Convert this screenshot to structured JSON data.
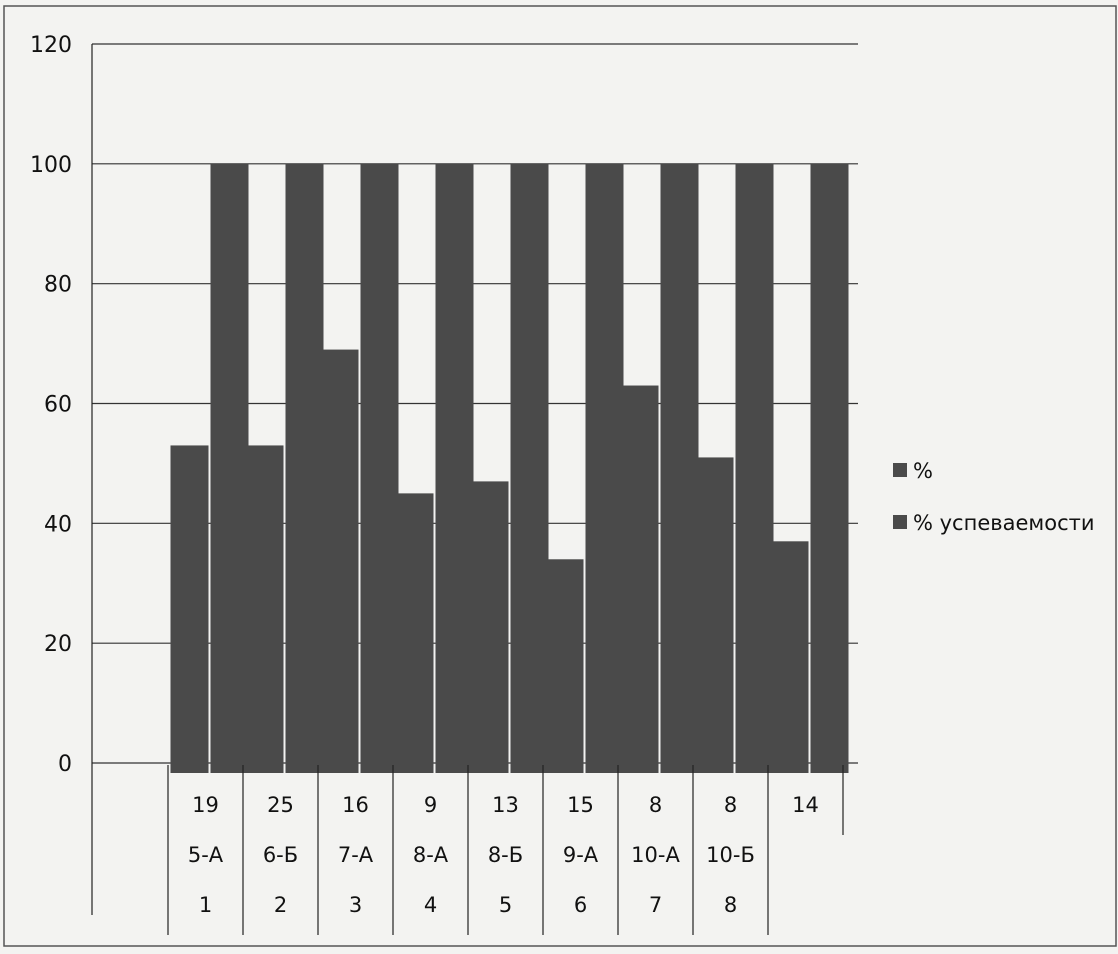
{
  "chart_data": {
    "type": "bar",
    "ylim": [
      0,
      120
    ],
    "yticks": [
      0,
      20,
      40,
      60,
      80,
      100,
      120
    ],
    "grid": true,
    "legend_position": "right",
    "categories": [
      [
        "19",
        "5-А",
        "1"
      ],
      [
        "25",
        "6-Б",
        "2"
      ],
      [
        "16",
        "7-А",
        "3"
      ],
      [
        "9",
        "8-А",
        "4"
      ],
      [
        "13",
        "8-Б",
        "5"
      ],
      [
        "15",
        "9-А",
        "6"
      ],
      [
        "8",
        "10-А",
        "7"
      ],
      [
        "8",
        "10-Б",
        "8"
      ],
      [
        "14",
        "",
        ""
      ]
    ],
    "series": [
      {
        "name": "%",
        "values": [
          53,
          53,
          69,
          45,
          47,
          34,
          63,
          51,
          37
        ]
      },
      {
        "name": "% успеваемости",
        "values": [
          100,
          100,
          100,
          100,
          100,
          100,
          100,
          100,
          100
        ]
      }
    ],
    "colors": {
      "bar": "#4a4a4a",
      "grid": "#333333",
      "axis": "#222222"
    }
  }
}
